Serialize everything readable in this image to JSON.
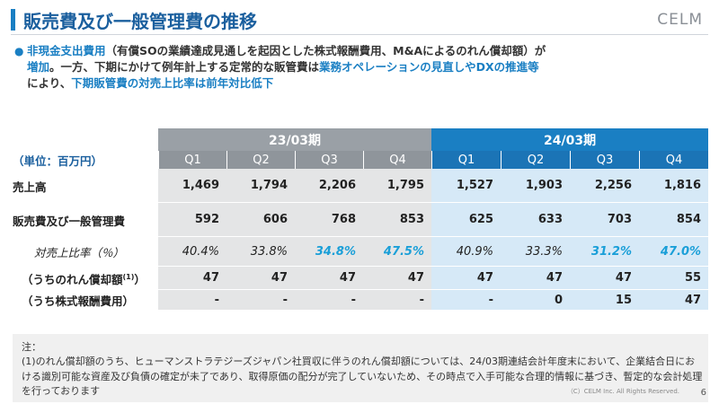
{
  "header": {
    "title": "販売費及び一般管理費の推移",
    "logo": "CELM"
  },
  "bullet": {
    "line1_a": "非現金支出費用",
    "line1_b": "（有償SOの業績達成見通しを起因とした株式報酬費用、M&Aによるのれん償却額）が",
    "line2_a": "増加",
    "line2_b": "。一方、下期にかけて例年計上する定常的な販管費は",
    "line2_c": "業務オペレーションの見直しやDXの推進等",
    "line3_a": "により、",
    "line3_b": "下期販管費の対売上比率は前年対比低下"
  },
  "table": {
    "unit_label": "（単位：百万円）",
    "period_23": "23/03期",
    "period_24": "24/03期",
    "quarters": [
      "Q1",
      "Q2",
      "Q3",
      "Q4",
      "Q1",
      "Q2",
      "Q3",
      "Q4"
    ],
    "rows": [
      {
        "label": "売上高",
        "values": [
          "1,469",
          "1,794",
          "2,206",
          "1,795",
          "1,527",
          "1,903",
          "2,256",
          "1,816"
        ]
      },
      {
        "label": "販売費及び一般管理費",
        "values": [
          "592",
          "606",
          "768",
          "853",
          "625",
          "633",
          "703",
          "854"
        ]
      },
      {
        "label": "対売上比率（％）",
        "values": [
          "40.4%",
          "33.8%",
          "34.8%",
          "47.5%",
          "40.9%",
          "33.3%",
          "31.2%",
          "47.0%"
        ]
      },
      {
        "label": "（うちのれん償却額",
        "sup": "(1)",
        "label_end": "）",
        "values": [
          "47",
          "47",
          "47",
          "47",
          "47",
          "47",
          "47",
          "55"
        ]
      },
      {
        "label": "（うち株式報酬費用）",
        "values": [
          "-",
          "-",
          "-",
          "-",
          "-",
          "0",
          "15",
          "47"
        ]
      }
    ]
  },
  "note": {
    "label": "注：",
    "body": "(1)のれん償却額のうち、ヒューマンストラテジーズジャパン社買収に伴うのれん償却額については、24/03期連結会計年度末において、企業結合日における識別可能な資産及び負債の確定が未了であり、取得原価の配分が完了していないため、その時点で入手可能な合理的情報に基づき、暫定的な会計処理を行っております"
  },
  "footer": {
    "copyright": "（C）CELM Inc. All Rights Reserved.",
    "page": "6"
  },
  "colors": {
    "accent": "#1a7fc3",
    "highlight": "#1a9fd8",
    "header_gray": "#9aa0a6",
    "cell_gray": "#e4e5e6",
    "cell_blue": "#d6e9f7"
  }
}
